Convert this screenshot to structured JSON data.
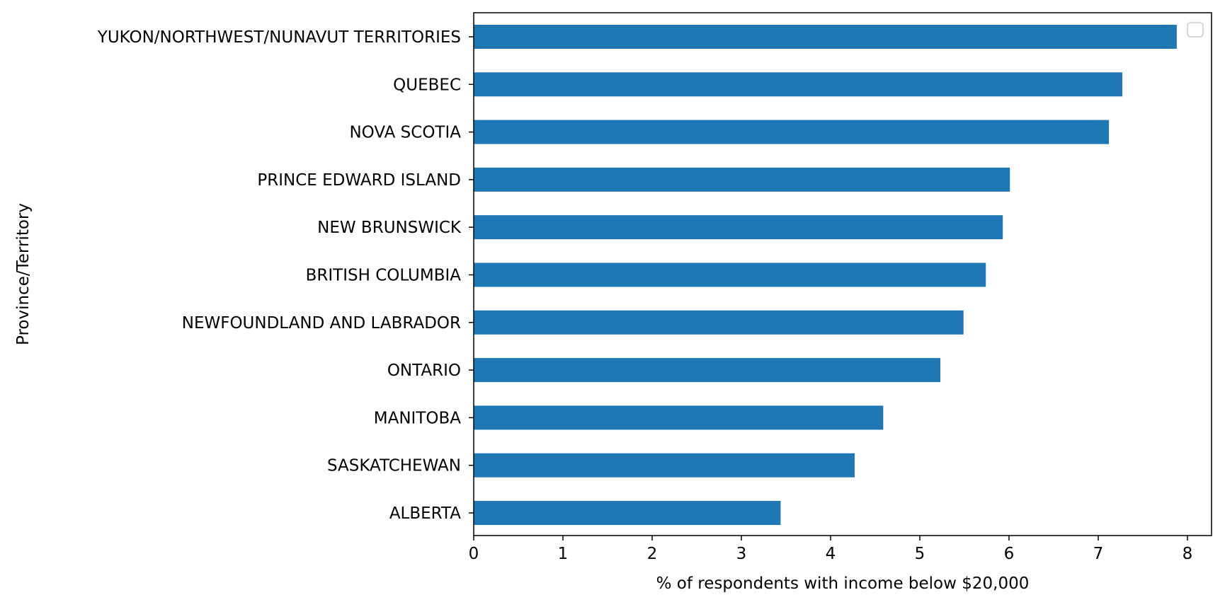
{
  "chart_data": {
    "type": "bar",
    "orientation": "horizontal",
    "title": "",
    "xlabel": "% of respondents with income below $20,000",
    "ylabel": "Province/Territory",
    "categories": [
      "YUKON/NORTHWEST/NUNAVUT TERRITORIES",
      "QUEBEC",
      "NOVA SCOTIA",
      "PRINCE EDWARD ISLAND",
      "NEW BRUNSWICK",
      "BRITISH COLUMBIA",
      "NEWFOUNDLAND AND LABRADOR",
      "ONTARIO",
      "MANITOBA",
      "SASKATCHEWAN",
      "ALBERTA"
    ],
    "values": [
      7.88,
      7.27,
      7.12,
      6.01,
      5.93,
      5.74,
      5.49,
      5.23,
      4.59,
      4.27,
      3.44
    ],
    "xlim": [
      0,
      8.27
    ],
    "xticks": [
      "0",
      "1",
      "2",
      "3",
      "4",
      "5",
      "6",
      "7",
      "8"
    ],
    "bar_color": "#1f77b4",
    "grid": false,
    "legend": {
      "placement": "top-right",
      "entries": []
    }
  }
}
